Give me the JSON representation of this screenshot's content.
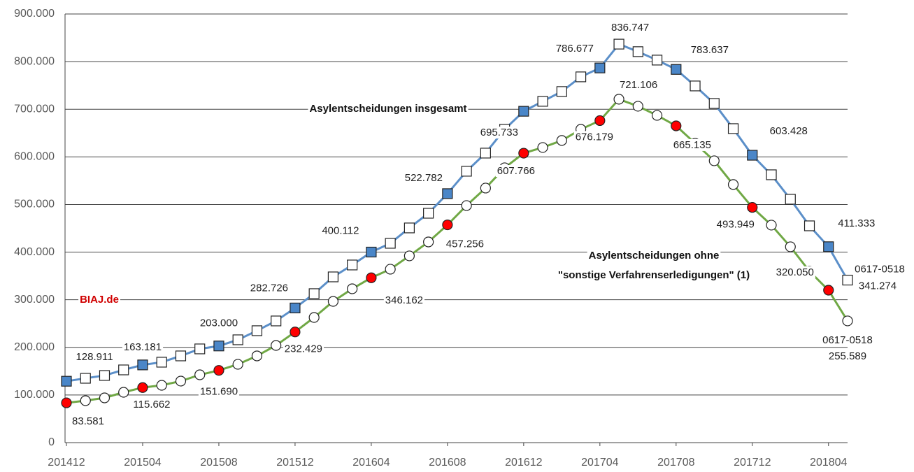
{
  "chart_data": {
    "type": "line",
    "categories": [
      "201412",
      null,
      null,
      null,
      "201504",
      null,
      null,
      null,
      "201508",
      null,
      null,
      null,
      "201512",
      null,
      null,
      null,
      "201604",
      null,
      null,
      null,
      "201608",
      null,
      null,
      null,
      "201612",
      null,
      null,
      null,
      "201704",
      null,
      null,
      null,
      "201708",
      null,
      null,
      null,
      "201712",
      null,
      null,
      null,
      "201804",
      null
    ],
    "ylim": [
      0,
      900000
    ],
    "yticks": [
      0,
      {
        "value": 100000,
        "label": "100.000"
      },
      {
        "value": 200000,
        "label": "200.000"
      },
      {
        "value": 300000,
        "label": "300.000"
      },
      {
        "value": 400000,
        "label": "400.000"
      },
      {
        "value": 500000,
        "label": "500.000"
      },
      {
        "value": 600000,
        "label": "600.000"
      },
      {
        "value": 700000,
        "label": "700.000"
      },
      {
        "value": 800000,
        "label": "800.000"
      },
      {
        "value": 900000,
        "label": "900.000"
      }
    ],
    "grid": true,
    "series": [
      {
        "name": "Asylentscheidungen insgesamt",
        "color": "#5b8fc9",
        "marker_color": "#4a86c8",
        "values": [
          128911,
          135100,
          141000,
          152700,
          163181,
          168900,
          182100,
          196800,
          203000,
          215900,
          235000,
          255500,
          282726,
          312800,
          348000,
          373000,
          400112,
          418500,
          450800,
          481600,
          522782,
          569800,
          607900,
          657900,
          695733,
          716600,
          737200,
          768000,
          786677,
          836747,
          820900,
          803200,
          783637,
          748900,
          712200,
          659300,
          603428,
          562400,
          511000,
          455200,
          411333,
          341274
        ],
        "value_labels": [
          "128.911",
          null,
          null,
          null,
          "163.181",
          null,
          null,
          null,
          "203.000",
          null,
          null,
          null,
          "282.726",
          null,
          null,
          null,
          "400.112",
          null,
          null,
          null,
          "522.782",
          null,
          null,
          null,
          "695.733",
          null,
          null,
          null,
          "786.677",
          "836.747",
          null,
          null,
          "783.637",
          null,
          null,
          null,
          "603.428",
          null,
          null,
          null,
          "411.333",
          "341.274"
        ]
      },
      {
        "name": "Asylentscheidungen ohne \"sonstige Verfahrenserledigungen\" (1)",
        "color": "#70a845",
        "marker_color": "#ff0000",
        "values": [
          83581,
          88100,
          94000,
          105700,
          115662,
          120400,
          129200,
          142400,
          151690,
          164500,
          182100,
          204100,
          232429,
          262800,
          296600,
          323000,
          346162,
          364200,
          392100,
          421400,
          457256,
          497800,
          534500,
          577100,
          607766,
          619700,
          634400,
          657900,
          676179,
          721106,
          706300,
          687200,
          665135,
          628500,
          591800,
          541900,
          493949,
          456700,
          411200,
          359800,
          320050,
          255589
        ],
        "value_labels": [
          "83.581",
          null,
          null,
          null,
          "115.662",
          null,
          null,
          null,
          "151.690",
          null,
          null,
          null,
          "232.429",
          null,
          null,
          null,
          "346.162",
          null,
          null,
          null,
          "457.256",
          null,
          null,
          null,
          "607.766",
          null,
          null,
          null,
          "676.179",
          "721.106",
          null,
          null,
          "665.135",
          null,
          null,
          null,
          "493.949",
          null,
          null,
          null,
          "320.050",
          "255.589"
        ]
      }
    ],
    "annotations": [
      "Asylentscheidungen insgesamt",
      "Asylentscheidungen ohne",
      "\"sonstige Verfahrenserledigungen\" (1)",
      "BIAJ.de",
      "0617-0518",
      "0617-0518"
    ]
  }
}
